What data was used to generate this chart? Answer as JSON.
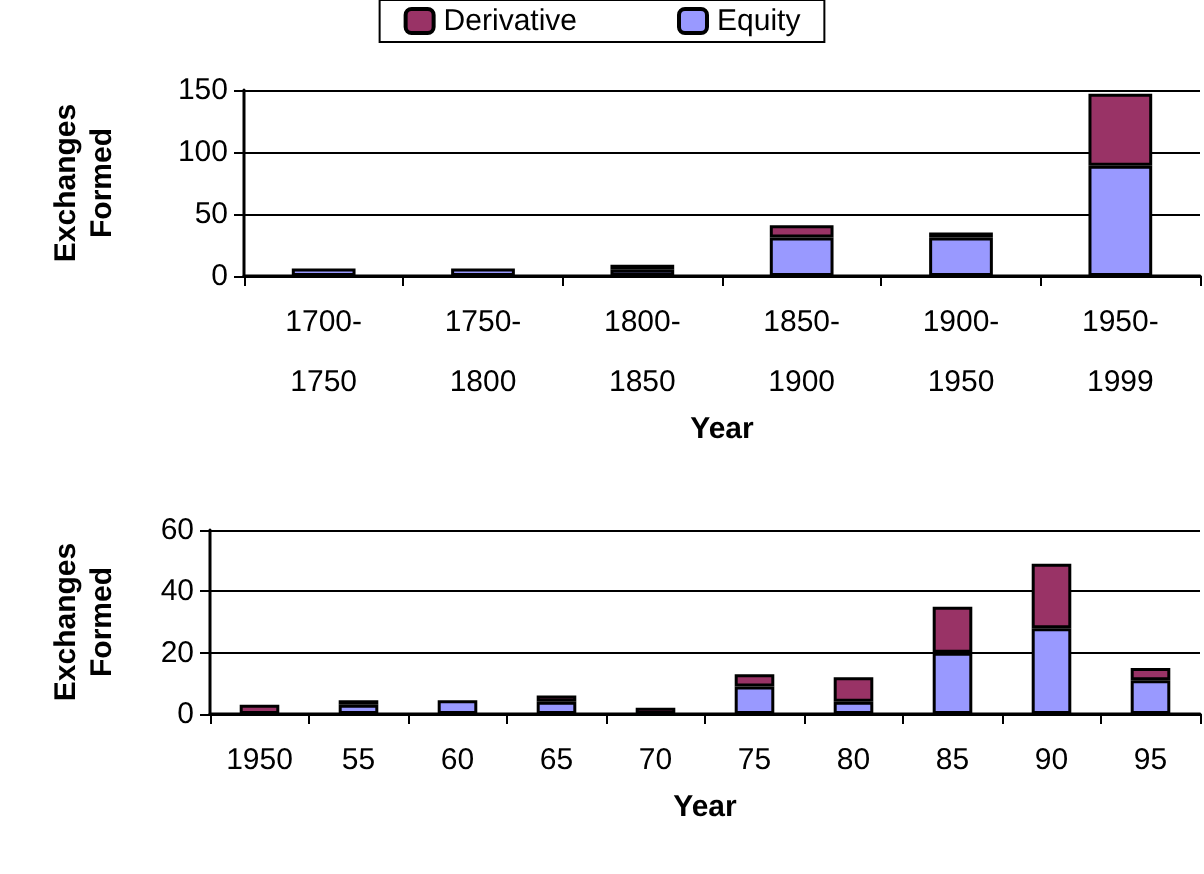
{
  "chart_data": [
    {
      "type": "bar",
      "stacked": true,
      "xlabel": "Year",
      "ylabel": "Exchanges Formed",
      "categories": [
        "1700-1750",
        "1750-1800",
        "1800-1850",
        "1850-1900",
        "1900-1950",
        "1950-1999"
      ],
      "series": [
        {
          "name": "Equity",
          "color": "#9999ff",
          "values": [
            6,
            6,
            5,
            31,
            31,
            89
          ]
        },
        {
          "name": "Derivative",
          "color": "#993366",
          "values": [
            null,
            null,
            4,
            10,
            4,
            58
          ]
        }
      ],
      "ylim": [
        0,
        150
      ],
      "yticks": [
        0,
        50,
        100,
        150
      ],
      "grid": "y",
      "legend": "top"
    },
    {
      "type": "bar",
      "stacked": true,
      "xlabel": "Year",
      "ylabel": "Exchanges Formed",
      "categories": [
        "1950",
        "55",
        "60",
        "65",
        "70",
        "75",
        "80",
        "85",
        "90",
        "95"
      ],
      "series": [
        {
          "color": "#9999ff",
          "values": [
            null,
            3,
            4.5,
            4,
            null,
            9,
            4,
            20,
            28,
            11
          ]
        },
        {
          "color": "#993366",
          "values": [
            3,
            1.5,
            null,
            2,
            2,
            4,
            8,
            15,
            21,
            4
          ]
        }
      ],
      "ylim": [
        0,
        60
      ],
      "yticks": [
        0,
        20,
        40,
        60
      ],
      "grid": "y",
      "legend": false
    }
  ]
}
